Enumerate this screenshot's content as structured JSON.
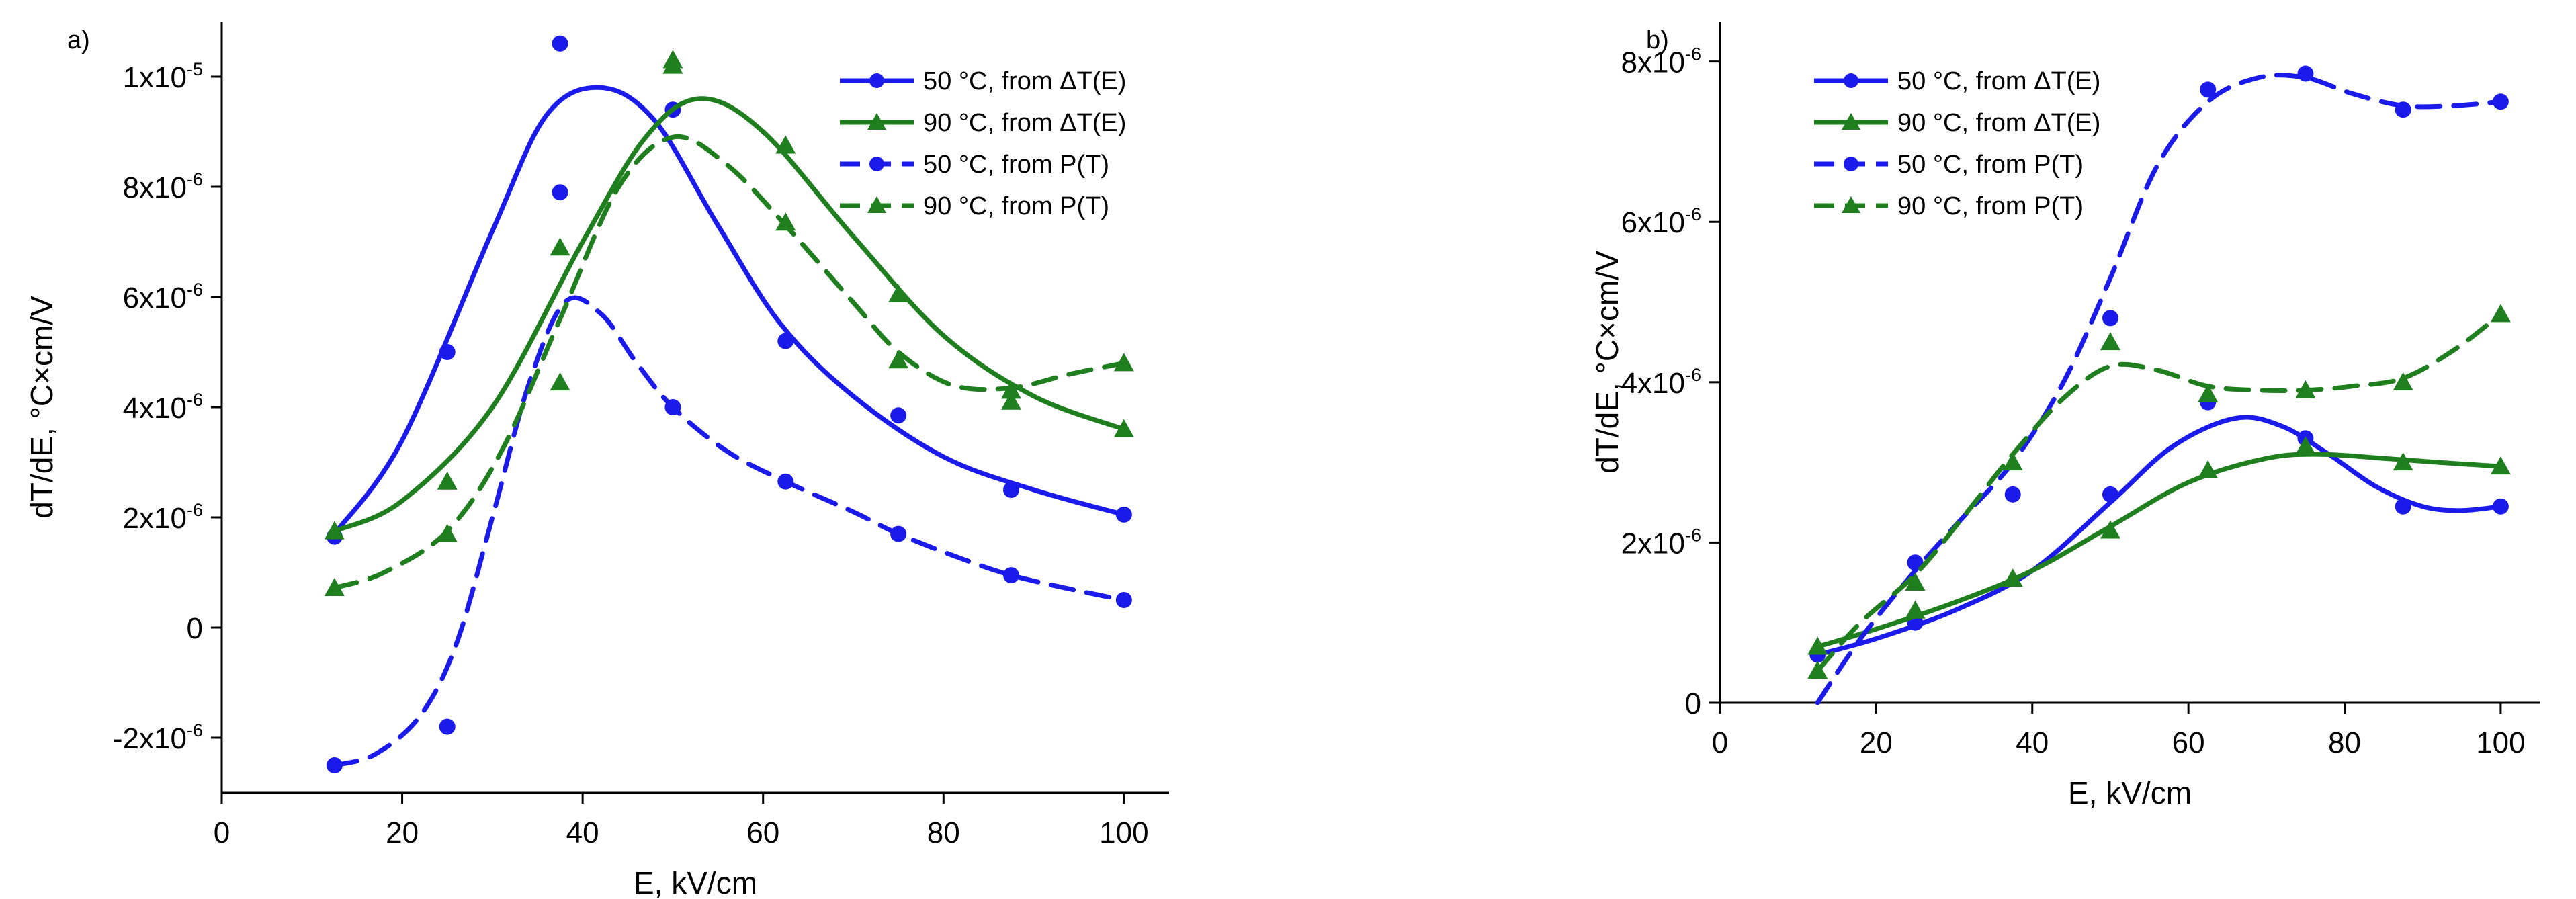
{
  "chart_data": [
    {
      "panel": "a)",
      "type": "scatter",
      "xlabel": "E, kV/cm",
      "ylabel": "dT/dE, °C×cm/V",
      "xlim": [
        0,
        105
      ],
      "ylim": [
        -3e-06,
        1.1e-05
      ],
      "xticks": [
        0,
        20,
        40,
        60,
        80,
        100
      ],
      "yticks": [
        -2e-06,
        0,
        2e-06,
        4e-06,
        6e-06,
        8e-06,
        1e-05
      ],
      "ytick_labels": [
        {
          "base": "-2x10",
          "exp": "-6"
        },
        {
          "base": "0",
          "exp": ""
        },
        {
          "base": "2x10",
          "exp": "-6"
        },
        {
          "base": "4x10",
          "exp": "-6"
        },
        {
          "base": "6x10",
          "exp": "-6"
        },
        {
          "base": "8x10",
          "exp": "-6"
        },
        {
          "base": "1x10",
          "exp": "-5"
        }
      ],
      "legend_position": "top-right",
      "series": [
        {
          "name": "50 °C, from ΔT(E)",
          "color": "#1a1aeb",
          "marker": "circle",
          "line": "solid",
          "x": [
            12.5,
            25,
            37.5,
            50,
            62.5,
            75,
            87.5,
            100
          ],
          "y": [
            1.65e-06,
            5e-06,
            1.06e-05,
            9.4e-06,
            5.2e-06,
            3.85e-06,
            2.5e-06,
            2.05e-06
          ],
          "fit_x": [
            12.5,
            20,
            30,
            36,
            42,
            48,
            55,
            62,
            70,
            80,
            90,
            100
          ],
          "fit_y": [
            1.7e-06,
            3.4e-06,
            7.2e-06,
            9.3e-06,
            9.8e-06,
            9.2e-06,
            7.3e-06,
            5.5e-06,
            4.2e-06,
            3.1e-06,
            2.5e-06,
            2.05e-06
          ]
        },
        {
          "name": "90 °C, from ΔT(E)",
          "color": "#1f7f1f",
          "marker": "triangle",
          "line": "solid",
          "x": [
            12.5,
            25,
            37.5,
            50,
            62.5,
            75,
            87.5,
            100
          ],
          "y": [
            1.75e-06,
            2.65e-06,
            6.9e-06,
            1.02e-05,
            8.75e-06,
            6.05e-06,
            4.3e-06,
            3.6e-06
          ],
          "fit_x": [
            12.5,
            20,
            30,
            40,
            47,
            53,
            60,
            70,
            80,
            90,
            100
          ],
          "fit_y": [
            1.75e-06,
            2.3e-06,
            4e-06,
            7e-06,
            8.9e-06,
            9.6e-06,
            9e-06,
            7.1e-06,
            5.3e-06,
            4.2e-06,
            3.6e-06
          ]
        },
        {
          "name": "50 °C, from P(T)",
          "color": "#1a1aeb",
          "marker": "circle",
          "line": "dashed",
          "x": [
            12.5,
            25,
            37.5,
            37.5,
            50,
            62.5,
            75,
            87.5,
            100
          ],
          "y": [
            -2.5e-06,
            -1.8e-06,
            7.9e-06,
            1.06e-05,
            4e-06,
            2.65e-06,
            1.7e-06,
            9.5e-07,
            5e-07
          ],
          "fit_x": [
            12.5,
            17,
            22,
            26,
            30,
            34,
            38,
            42,
            46,
            50,
            56,
            62.5,
            70,
            75,
            82,
            87.5,
            94,
            100
          ],
          "fit_y": [
            -2.5e-06,
            -2.3e-06,
            -1.6e-06,
            -3e-07,
            2e-06,
            4.4e-06,
            5.9e-06,
            5.7e-06,
            4.8e-06,
            4e-06,
            3.2e-06,
            2.65e-06,
            2.1e-06,
            1.7e-06,
            1.25e-06,
            9.5e-07,
            7e-07,
            5e-07
          ]
        },
        {
          "name": "90 °C, from P(T)",
          "color": "#1f7f1f",
          "marker": "triangle",
          "line": "dashed",
          "x": [
            12.5,
            25,
            37.5,
            50,
            62.5,
            75,
            87.5,
            100
          ],
          "y": [
            7.2e-07,
            1.7e-06,
            4.45e-06,
            1.03e-05,
            7.35e-06,
            4.85e-06,
            4.1e-06,
            4.8e-06
          ],
          "fit_x": [
            12.5,
            18,
            25,
            31,
            37.5,
            44,
            50,
            56,
            62.5,
            70,
            75,
            81,
            87.5,
            94,
            100
          ],
          "fit_y": [
            7.2e-07,
            1e-06,
            1.75e-06,
            3.2e-06,
            5.6e-06,
            8e-06,
            8.9e-06,
            8.4e-06,
            7.3e-06,
            5.9e-06,
            5e-06,
            4.4e-06,
            4.35e-06,
            4.6e-06,
            4.8e-06
          ]
        }
      ]
    },
    {
      "panel": "b)",
      "type": "scatter",
      "xlabel": "E, kV/cm",
      "ylabel": "dT/dE, °C×cm/V",
      "xlim": [
        0,
        105
      ],
      "ylim": [
        0,
        8.5e-06
      ],
      "xticks": [
        0,
        20,
        40,
        60,
        80,
        100
      ],
      "yticks": [
        0,
        2e-06,
        4e-06,
        6e-06,
        8e-06
      ],
      "ytick_labels": [
        {
          "base": "0",
          "exp": ""
        },
        {
          "base": "2x10",
          "exp": "-6"
        },
        {
          "base": "4x10",
          "exp": "-6"
        },
        {
          "base": "6x10",
          "exp": "-6"
        },
        {
          "base": "8x10",
          "exp": "-6"
        }
      ],
      "legend_position": "top-left",
      "series": [
        {
          "name": "50 °C, from ΔT(E)",
          "color": "#1a1aeb",
          "marker": "circle",
          "line": "solid",
          "x": [
            12.5,
            25,
            50,
            62.5,
            75,
            87.5,
            100
          ],
          "y": [
            6e-07,
            1e-06,
            2.6e-06,
            3.75e-06,
            3.3e-06,
            2.45e-06,
            2.45e-06
          ],
          "fit_x": [
            12.5,
            20,
            30,
            40,
            50,
            58,
            66,
            72,
            78,
            84,
            90,
            95,
            100
          ],
          "fit_y": [
            6e-07,
            8e-07,
            1.15e-06,
            1.65e-06,
            2.5e-06,
            3.2e-06,
            3.55e-06,
            3.45e-06,
            3.1e-06,
            2.7e-06,
            2.45e-06,
            2.4e-06,
            2.45e-06
          ]
        },
        {
          "name": "90 °C, from ΔT(E)",
          "color": "#1f7f1f",
          "marker": "triangle",
          "line": "solid",
          "x": [
            12.5,
            25,
            37.5,
            50,
            62.5,
            75,
            87.5,
            100
          ],
          "y": [
            7e-07,
            1.15e-06,
            1.55e-06,
            2.15e-06,
            2.9e-06,
            3.2e-06,
            3e-06,
            2.95e-06
          ],
          "fit_x": [
            12.5,
            20,
            30,
            40,
            50,
            60,
            70,
            77,
            85,
            92,
            100
          ],
          "fit_y": [
            7e-07,
            9.2e-07,
            1.25e-06,
            1.65e-06,
            2.2e-06,
            2.75e-06,
            3.05e-06,
            3.1e-06,
            3.05e-06,
            3e-06,
            2.95e-06
          ]
        },
        {
          "name": "50 °C, from P(T)",
          "color": "#1a1aeb",
          "marker": "circle",
          "line": "dashed",
          "x": [
            25,
            37.5,
            50,
            62.5,
            75,
            87.5,
            100
          ],
          "y": [
            1.75e-06,
            2.6e-06,
            4.8e-06,
            7.65e-06,
            7.85e-06,
            7.4e-06,
            7.5e-06
          ],
          "fit_x": [
            12.5,
            18,
            25,
            31,
            37.5,
            44,
            50,
            56,
            62.5,
            69,
            75,
            81,
            87.5,
            94,
            100
          ],
          "fit_y": [
            0.0,
            8e-07,
            1.65e-06,
            2.3e-06,
            3e-06,
            4e-06,
            5.3e-06,
            6.7e-06,
            7.5e-06,
            7.8e-06,
            7.8e-06,
            7.6e-06,
            7.45e-06,
            7.45e-06,
            7.5e-06
          ]
        },
        {
          "name": "90 °C, from P(T)",
          "color": "#1f7f1f",
          "marker": "triangle",
          "line": "dashed",
          "x": [
            12.5,
            25,
            37.5,
            50,
            62.5,
            75,
            87.5,
            100
          ],
          "y": [
            4e-07,
            1.5e-06,
            3e-06,
            4.5e-06,
            3.85e-06,
            3.9e-06,
            4e-06,
            4.85e-06
          ],
          "fit_x": [
            12.5,
            18,
            25,
            31,
            37.5,
            44,
            50,
            56,
            62.5,
            69,
            75,
            81,
            87.5,
            94,
            100
          ],
          "fit_y": [
            4e-07,
            1e-06,
            1.6e-06,
            2.3e-06,
            3.1e-06,
            3.8e-06,
            4.2e-06,
            4.15e-06,
            3.95e-06,
            3.9e-06,
            3.9e-06,
            3.95e-06,
            4.05e-06,
            4.4e-06,
            4.85e-06
          ]
        }
      ]
    }
  ]
}
